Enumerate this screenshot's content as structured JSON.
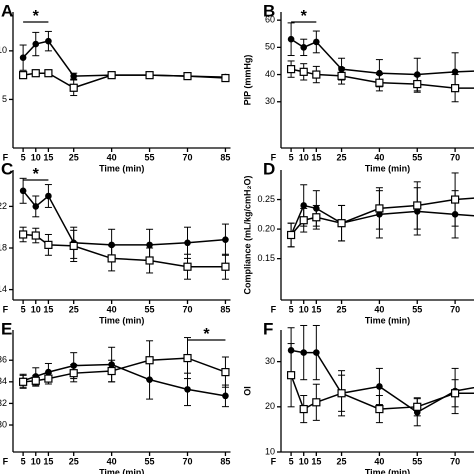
{
  "chart_data": [
    {
      "type": "line",
      "panel_label": "A",
      "x_label": "Time (min)",
      "x": [
        5,
        10,
        15,
        25,
        40,
        55,
        70,
        85
      ],
      "xlim": [
        1,
        87
      ],
      "xticks": [
        {
          "value": -2,
          "label": "F"
        },
        5,
        10,
        15,
        25,
        40,
        55,
        70,
        85
      ],
      "ylim": [
        0,
        14
      ],
      "yticks": [
        5,
        10
      ],
      "significance": {
        "label": "*",
        "from": 5,
        "to": 15
      },
      "series": [
        {
          "marker": "circle",
          "color": "#000000",
          "values": [
            9.3,
            10.7,
            11.0,
            7.4,
            7.5,
            7.5,
            7.4,
            7.3
          ],
          "errors": [
            1.3,
            1.2,
            1.0,
            0.3,
            0.2,
            0.2,
            0.2,
            0.2
          ]
        },
        {
          "marker": "square",
          "color": "#000000",
          "values": [
            7.5,
            7.7,
            7.7,
            6.2,
            7.5,
            7.5,
            7.4,
            7.2
          ],
          "errors": [
            0.3,
            0.3,
            0.3,
            0.8,
            0.2,
            0.2,
            0.2,
            0.2
          ]
        }
      ]
    },
    {
      "type": "line",
      "panel_label": "B",
      "y_label": "PIP (mmHg)",
      "x_label": "Time (min)",
      "x": [
        5,
        10,
        15,
        25,
        40,
        55,
        70,
        85
      ],
      "xlim": [
        1,
        87
      ],
      "xticks": [
        {
          "value": -2,
          "label": "F"
        },
        5,
        10,
        15,
        25,
        40,
        55,
        70,
        85
      ],
      "ylim": [
        13,
        63
      ],
      "yticks": [
        30,
        40,
        50,
        60
      ],
      "significance": {
        "label": "*",
        "from": 5,
        "to": 15
      },
      "series": [
        {
          "marker": "circle",
          "color": "#000000",
          "values": [
            53,
            50,
            52,
            42,
            40.5,
            40,
            41,
            41.5
          ],
          "errors": [
            6,
            3,
            4,
            4,
            5,
            6,
            7,
            6
          ]
        },
        {
          "marker": "square",
          "color": "#000000",
          "values": [
            42,
            41,
            40,
            39.5,
            37,
            36.5,
            35,
            35
          ],
          "errors": [
            3,
            3,
            3,
            3,
            3,
            3,
            5,
            5
          ]
        }
      ]
    },
    {
      "type": "line",
      "panel_label": "C",
      "x_label": "Time (min)",
      "x": [
        5,
        10,
        15,
        25,
        40,
        55,
        70,
        85
      ],
      "xlim": [
        1,
        87
      ],
      "xticks": [
        {
          "value": -2,
          "label": "F"
        },
        5,
        10,
        15,
        25,
        40,
        55,
        70,
        85
      ],
      "ylim": [
        13,
        25.5
      ],
      "yticks": [
        14,
        18,
        22
      ],
      "significance": {
        "label": "*",
        "from": 5,
        "to": 15
      },
      "series": [
        {
          "marker": "circle",
          "color": "#000000",
          "values": [
            23.5,
            22,
            23,
            18.5,
            18.3,
            18.3,
            18.5,
            18.8
          ],
          "errors": [
            1.2,
            1.0,
            1.1,
            1.5,
            1.5,
            1.5,
            1.5,
            1.5
          ]
        },
        {
          "marker": "square",
          "color": "#000000",
          "values": [
            19.3,
            19.2,
            18.3,
            18.2,
            17,
            16.8,
            16.2,
            16.2
          ],
          "errors": [
            0.7,
            0.7,
            1,
            1.5,
            1.2,
            1.2,
            1.2,
            1.2
          ]
        }
      ]
    },
    {
      "type": "line",
      "panel_label": "D",
      "y_label": "Compliance (mL/kg/cmH₂O)",
      "x_label": "Time (min)",
      "x": [
        5,
        10,
        15,
        25,
        40,
        55,
        70,
        85
      ],
      "xlim": [
        1,
        87
      ],
      "xticks": [
        {
          "value": -2,
          "label": "F"
        },
        5,
        10,
        15,
        25,
        40,
        55,
        70,
        85
      ],
      "ylim": [
        0.08,
        0.3
      ],
      "yticks": [
        {
          "value": 0.15,
          "label": "0.15"
        },
        {
          "value": 0.2,
          "label": "0.20"
        },
        {
          "value": 0.25,
          "label": "0.25"
        }
      ],
      "series": [
        {
          "marker": "circle",
          "color": "#000000",
          "values": [
            0.19,
            0.24,
            0.235,
            0.21,
            0.225,
            0.23,
            0.225,
            0.22
          ],
          "errors": [
            0.02,
            0.035,
            0.03,
            0.03,
            0.04,
            0.04,
            0.04,
            0.04
          ]
        },
        {
          "marker": "square",
          "color": "#000000",
          "values": [
            0.19,
            0.215,
            0.22,
            0.21,
            0.235,
            0.24,
            0.25,
            0.255
          ],
          "errors": [
            0.02,
            0.02,
            0.02,
            0.03,
            0.035,
            0.04,
            0.045,
            0.05
          ]
        }
      ]
    },
    {
      "type": "line",
      "panel_label": "E",
      "x_label": "Time (min)",
      "x": [
        5,
        10,
        15,
        25,
        40,
        55,
        70,
        85
      ],
      "xlim": [
        1,
        87
      ],
      "xticks": [
        {
          "value": -2,
          "label": "F"
        },
        5,
        10,
        15,
        25,
        40,
        55,
        70,
        85
      ],
      "ylim": [
        27.5,
        38.8
      ],
      "yticks": [
        30,
        32,
        34,
        36
      ],
      "significance": {
        "label": "*",
        "from": 70,
        "to": 85
      },
      "series": [
        {
          "marker": "circle",
          "color": "#000000",
          "values": [
            34.1,
            34.5,
            34.9,
            35.5,
            35.6,
            34.2,
            33.3,
            32.7
          ],
          "errors": [
            0.6,
            0.8,
            0.8,
            1.2,
            1.6,
            1.8,
            1.5,
            1.0
          ]
        },
        {
          "marker": "square",
          "color": "#000000",
          "values": [
            34.0,
            34.1,
            34.3,
            34.8,
            35.0,
            36.0,
            36.2,
            34.9
          ],
          "errors": [
            0.6,
            0.5,
            0.5,
            0.8,
            1.0,
            1.8,
            1.9,
            1.4
          ]
        }
      ]
    },
    {
      "type": "line",
      "panel_label": "F",
      "y_label": "OI",
      "x_label": "Time (min)",
      "x": [
        5,
        10,
        15,
        25,
        40,
        55,
        70,
        85
      ],
      "xlim": [
        1,
        87
      ],
      "xticks": [
        {
          "value": -2,
          "label": "F"
        },
        5,
        10,
        15,
        25,
        40,
        55,
        70,
        85
      ],
      "ylim": [
        10,
        37
      ],
      "yticks": [
        10,
        20,
        30
      ],
      "series": [
        {
          "marker": "circle",
          "color": "#000000",
          "values": [
            32.5,
            32,
            32,
            23,
            24.5,
            18.8,
            23.5,
            25
          ],
          "errors": [
            5,
            6,
            6,
            5,
            4,
            3,
            5,
            5
          ]
        },
        {
          "marker": "square",
          "color": "#000000",
          "values": [
            27,
            19.5,
            21,
            23,
            19.5,
            20,
            23,
            23
          ],
          "errors": [
            7,
            3,
            4,
            4,
            3,
            2,
            3,
            3
          ]
        }
      ]
    }
  ]
}
